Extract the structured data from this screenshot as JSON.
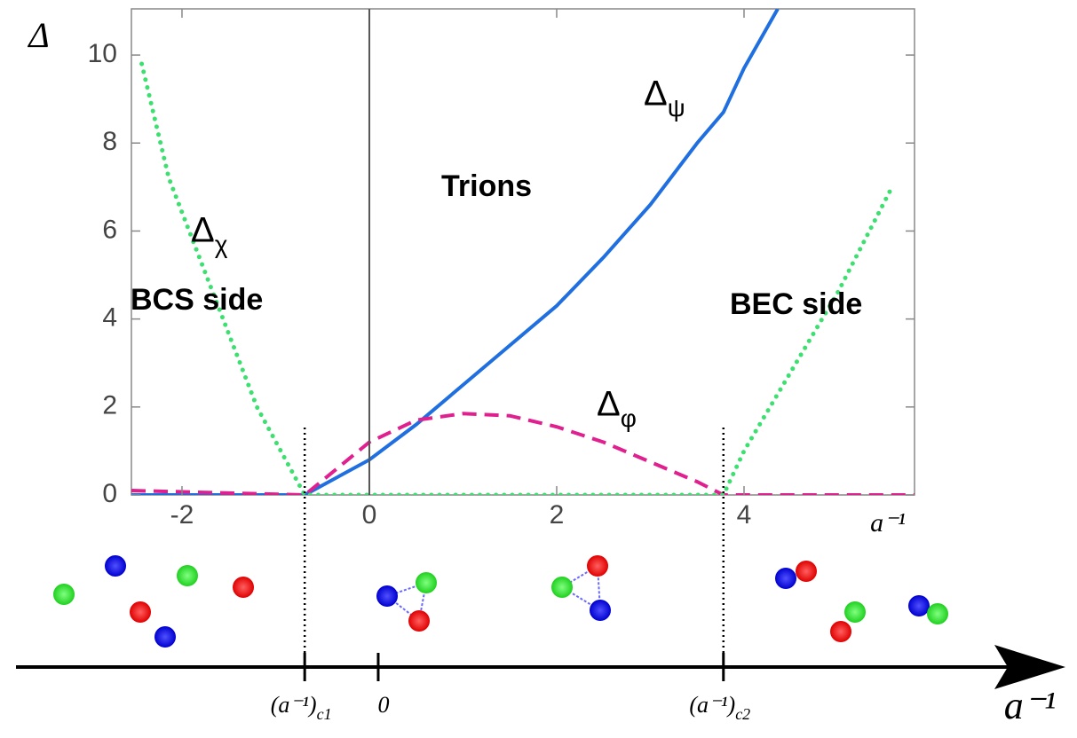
{
  "chart_data": {
    "type": "line",
    "xlim": [
      -2.54,
      5.82
    ],
    "ylim": [
      0,
      11.05
    ],
    "xticks": [
      -2,
      0,
      2,
      4
    ],
    "yticks": [
      0,
      2,
      4,
      6,
      8,
      10
    ],
    "x_label": "a⁻¹",
    "y_label": "Δ",
    "critical_points": [
      -0.69,
      3.78
    ],
    "series": [
      {
        "name": "Δ",
        "subscript": "ψ",
        "color": "#1f6fe0",
        "style": "solid",
        "x": [
          -2.54,
          -0.69,
          0,
          0.5,
          1,
          1.5,
          2,
          2.5,
          3,
          3.5,
          3.78,
          4,
          4.36
        ],
        "values": [
          0,
          0,
          0.8,
          1.6,
          2.5,
          3.4,
          4.3,
          5.4,
          6.6,
          8.0,
          8.7,
          9.7,
          11.05
        ]
      },
      {
        "name": "Δ",
        "subscript": "φ",
        "color": "#e0208f",
        "style": "dashed",
        "x": [
          -2.54,
          -0.69,
          0,
          0.5,
          1,
          1.5,
          2,
          2.5,
          3,
          3.5,
          3.78,
          5.82
        ],
        "values": [
          0.1,
          0,
          1.2,
          1.7,
          1.85,
          1.8,
          1.55,
          1.2,
          0.75,
          0.3,
          0,
          0
        ]
      },
      {
        "name": "Δ",
        "subscript": "χ",
        "color": "#3de070",
        "style": "dotted",
        "x": [
          -2.43,
          -2.14,
          -1.67,
          -1.2,
          -0.69,
          3.78,
          4,
          4.5,
          5,
          5.58
        ],
        "values": [
          9.8,
          7.2,
          4.6,
          2.0,
          0,
          0,
          1.0,
          2.8,
          4.6,
          7.0
        ]
      }
    ],
    "annotations": [
      "Trions",
      "BCS side",
      "BEC side"
    ],
    "schematic": {
      "labels": [
        {
          "text": "(a⁻¹)",
          "sub": "c1"
        },
        {
          "text": "0",
          "sub": ""
        },
        {
          "text": "(a⁻¹)",
          "sub": "c2"
        }
      ],
      "axis_label": "a⁻¹"
    }
  }
}
